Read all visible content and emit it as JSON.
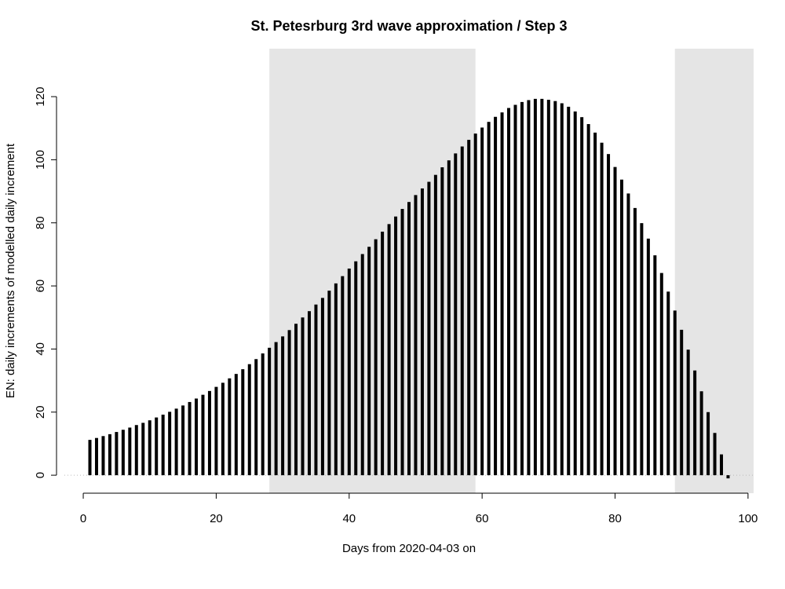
{
  "chart_data": {
    "type": "bar",
    "title": "St. Petesrburg 3rd wave approximation / Step 3",
    "x_label": "Days from 2020-04-03 on",
    "y_label": "EN: daily increments of modelled daily increment",
    "x": [
      1,
      2,
      3,
      4,
      5,
      6,
      7,
      8,
      9,
      10,
      11,
      12,
      13,
      14,
      15,
      16,
      17,
      18,
      19,
      20,
      21,
      22,
      23,
      24,
      25,
      26,
      27,
      28,
      29,
      30,
      31,
      32,
      33,
      34,
      35,
      36,
      37,
      38,
      39,
      40,
      41,
      42,
      43,
      44,
      45,
      46,
      47,
      48,
      49,
      50,
      51,
      52,
      53,
      54,
      55,
      56,
      57,
      58,
      59,
      60,
      61,
      62,
      63,
      64,
      65,
      66,
      67,
      68,
      69,
      70,
      71,
      72,
      73,
      74,
      75,
      76,
      77,
      78,
      79,
      80,
      81,
      82,
      83,
      84,
      85,
      86,
      87,
      88,
      89,
      90,
      91,
      92,
      93,
      94,
      95,
      96,
      97
    ],
    "values": [
      11.2,
      11.8,
      12.4,
      13.0,
      13.7,
      14.4,
      15.1,
      15.9,
      16.6,
      17.4,
      18.3,
      19.2,
      20.1,
      21.1,
      22.1,
      23.2,
      24.3,
      25.5,
      26.7,
      28.0,
      29.3,
      30.7,
      32.1,
      33.6,
      35.2,
      36.8,
      38.6,
      40.4,
      42.2,
      44.0,
      46.0,
      48.0,
      50.0,
      52.0,
      54.1,
      56.2,
      58.5,
      60.8,
      63.1,
      65.5,
      67.8,
      70.1,
      72.4,
      74.8,
      77.2,
      79.6,
      82.0,
      84.4,
      86.6,
      88.8,
      90.9,
      93.0,
      95.2,
      97.6,
      99.8,
      102.0,
      104.2,
      106.3,
      108.3,
      110.2,
      112.0,
      113.6,
      115.0,
      116.4,
      117.4,
      118.3,
      118.9,
      119.3,
      119.3,
      119.0,
      118.6,
      117.9,
      116.8,
      115.3,
      113.5,
      111.3,
      108.6,
      105.4,
      101.8,
      97.7,
      93.7,
      89.3,
      84.7,
      79.9,
      75.0,
      69.7,
      64.1,
      58.2,
      52.2,
      46.1,
      39.8,
      33.2,
      26.6,
      20.0,
      13.4,
      6.6,
      -1.0
    ],
    "color": "#000000",
    "shaded_ranges": [
      [
        28,
        59
      ],
      [
        89,
        100.84
      ]
    ],
    "shade_color": "#e5e5e5",
    "xlim": [
      -2.84,
      100.84
    ],
    "xticks": [
      0,
      20,
      40,
      60,
      80,
      100
    ],
    "ylim": [
      -5.7,
      135.2
    ],
    "yticks": [
      0,
      20,
      40,
      60,
      80,
      100,
      120
    ]
  }
}
